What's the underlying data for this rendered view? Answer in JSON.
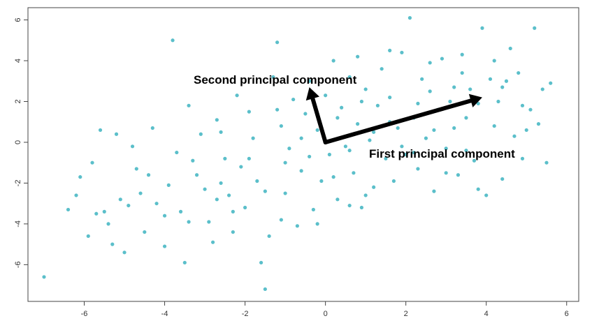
{
  "chart_data": {
    "type": "scatter",
    "title": "",
    "xlabel": "",
    "ylabel": "",
    "xlim": [
      -7.4,
      6.3
    ],
    "ylim": [
      -7.8,
      6.6
    ],
    "x_ticks": [
      -6,
      -4,
      -2,
      0,
      2,
      4,
      6
    ],
    "y_ticks": [
      -6,
      -4,
      -2,
      0,
      2,
      4,
      6
    ],
    "grid": false,
    "point_color": "#5bbfca",
    "series": [
      {
        "points": [
          [
            -7.0,
            -6.6
          ],
          [
            -6.4,
            -3.3
          ],
          [
            -6.2,
            -2.6
          ],
          [
            -5.9,
            -4.6
          ],
          [
            -5.7,
            -3.5
          ],
          [
            -5.6,
            0.6
          ],
          [
            -5.5,
            -3.4
          ],
          [
            -5.4,
            -4.0
          ],
          [
            -5.3,
            -5.0
          ],
          [
            -5.2,
            0.4
          ],
          [
            -5.1,
            -2.8
          ],
          [
            -5.0,
            -5.4
          ],
          [
            -4.9,
            -3.1
          ],
          [
            -4.8,
            -0.2
          ],
          [
            -4.7,
            -1.3
          ],
          [
            -4.6,
            -2.5
          ],
          [
            -4.5,
            -4.4
          ],
          [
            -4.4,
            -1.6
          ],
          [
            -4.2,
            -3.0
          ],
          [
            -4.0,
            -3.6
          ],
          [
            -4.0,
            -5.1
          ],
          [
            -3.8,
            5.0
          ],
          [
            -3.7,
            -0.5
          ],
          [
            -3.6,
            -3.4
          ],
          [
            -3.5,
            -5.9
          ],
          [
            -3.4,
            1.8
          ],
          [
            -3.2,
            -1.6
          ],
          [
            -3.1,
            0.4
          ],
          [
            -3.0,
            -2.3
          ],
          [
            -2.9,
            -3.9
          ],
          [
            -2.8,
            -4.9
          ],
          [
            -2.7,
            1.1
          ],
          [
            -2.6,
            0.5
          ],
          [
            -2.5,
            -0.8
          ],
          [
            -2.4,
            -2.6
          ],
          [
            -2.3,
            -4.4
          ],
          [
            -2.2,
            2.3
          ],
          [
            -2.1,
            -1.2
          ],
          [
            -2.0,
            -3.2
          ],
          [
            -1.9,
            1.5
          ],
          [
            -1.8,
            0.2
          ],
          [
            -1.7,
            -1.9
          ],
          [
            -1.6,
            -5.9
          ],
          [
            -1.5,
            -7.2
          ],
          [
            -1.4,
            -4.6
          ],
          [
            -1.3,
            3.2
          ],
          [
            -1.2,
            4.9
          ],
          [
            -1.1,
            0.8
          ],
          [
            -1.0,
            -2.5
          ],
          [
            -0.9,
            -0.3
          ],
          [
            -0.8,
            2.1
          ],
          [
            -0.7,
            -4.1
          ],
          [
            -0.6,
            -1.4
          ],
          [
            -0.5,
            1.4
          ],
          [
            -0.4,
            3.0
          ],
          [
            -0.3,
            -3.3
          ],
          [
            -0.2,
            0.6
          ],
          [
            -0.1,
            -1.9
          ],
          [
            0.0,
            2.3
          ],
          [
            0.1,
            -0.6
          ],
          [
            0.2,
            4.0
          ],
          [
            0.3,
            -2.8
          ],
          [
            0.4,
            1.7
          ],
          [
            0.5,
            -0.2
          ],
          [
            0.6,
            3.2
          ],
          [
            0.7,
            -1.5
          ],
          [
            0.8,
            0.9
          ],
          [
            0.9,
            -3.2
          ],
          [
            1.0,
            2.6
          ],
          [
            1.1,
            0.1
          ],
          [
            1.2,
            -2.2
          ],
          [
            1.3,
            1.8
          ],
          [
            1.4,
            3.6
          ],
          [
            1.5,
            -0.8
          ],
          [
            1.6,
            2.2
          ],
          [
            1.7,
            -1.9
          ],
          [
            1.8,
            0.7
          ],
          [
            1.9,
            4.4
          ],
          [
            2.0,
            -0.6
          ],
          [
            2.1,
            6.1
          ],
          [
            2.2,
            1.2
          ],
          [
            2.3,
            -1.3
          ],
          [
            2.4,
            3.1
          ],
          [
            2.5,
            0.2
          ],
          [
            2.6,
            2.5
          ],
          [
            2.7,
            -2.4
          ],
          [
            2.8,
            1.6
          ],
          [
            2.9,
            4.1
          ],
          [
            3.0,
            -0.3
          ],
          [
            3.1,
            2.0
          ],
          [
            3.2,
            0.7
          ],
          [
            3.3,
            -1.6
          ],
          [
            3.4,
            3.4
          ],
          [
            3.5,
            1.2
          ],
          [
            3.6,
            2.6
          ],
          [
            3.7,
            -0.9
          ],
          [
            3.8,
            1.9
          ],
          [
            3.9,
            5.6
          ],
          [
            4.0,
            -2.6
          ],
          [
            4.1,
            3.1
          ],
          [
            4.2,
            0.8
          ],
          [
            4.4,
            2.7
          ],
          [
            4.5,
            3.0
          ],
          [
            4.6,
            4.6
          ],
          [
            4.7,
            0.3
          ],
          [
            4.8,
            3.4
          ],
          [
            4.9,
            1.8
          ],
          [
            5.0,
            0.6
          ],
          [
            5.1,
            1.6
          ],
          [
            5.2,
            5.6
          ],
          [
            5.3,
            0.9
          ],
          [
            5.4,
            2.6
          ],
          [
            5.5,
            -1.0
          ],
          [
            5.6,
            2.9
          ],
          [
            -6.1,
            -1.7
          ],
          [
            -5.8,
            -1.0
          ],
          [
            -4.3,
            0.7
          ],
          [
            -3.9,
            -2.1
          ],
          [
            -3.3,
            -0.9
          ],
          [
            -2.6,
            -2.0
          ],
          [
            -1.9,
            -0.8
          ],
          [
            -1.2,
            1.6
          ],
          [
            -0.6,
            0.2
          ],
          [
            0.3,
            1.2
          ],
          [
            0.9,
            2.0
          ],
          [
            1.6,
            1.0
          ],
          [
            2.3,
            1.9
          ],
          [
            3.2,
            2.7
          ],
          [
            4.3,
            2.0
          ],
          [
            -1.0,
            -1.0
          ],
          [
            -0.4,
            -0.7
          ],
          [
            0.6,
            -0.4
          ],
          [
            1.2,
            0.5
          ],
          [
            1.9,
            -0.2
          ],
          [
            2.7,
            0.6
          ],
          [
            3.5,
            -0.4
          ],
          [
            -2.7,
            -2.8
          ],
          [
            -1.5,
            -2.4
          ],
          [
            0.2,
            -1.7
          ],
          [
            1.0,
            -2.6
          ],
          [
            -3.4,
            -3.9
          ],
          [
            -2.3,
            -3.4
          ],
          [
            -1.1,
            -3.8
          ],
          [
            -0.2,
            -4.0
          ],
          [
            0.6,
            -3.1
          ],
          [
            2.2,
            -0.5
          ],
          [
            3.0,
            -1.5
          ],
          [
            3.8,
            -2.3
          ],
          [
            4.4,
            -1.8
          ],
          [
            4.9,
            -0.8
          ],
          [
            0.8,
            4.2
          ],
          [
            1.6,
            4.5
          ],
          [
            2.6,
            3.9
          ],
          [
            3.4,
            4.3
          ],
          [
            4.2,
            4.0
          ]
        ]
      }
    ],
    "arrows": [
      {
        "label": "First principal component",
        "from": [
          0.0,
          0.0
        ],
        "to": [
          3.9,
          2.2
        ]
      },
      {
        "label": "Second principal component",
        "from": [
          0.0,
          0.0
        ],
        "to": [
          -0.4,
          2.7
        ]
      }
    ]
  }
}
